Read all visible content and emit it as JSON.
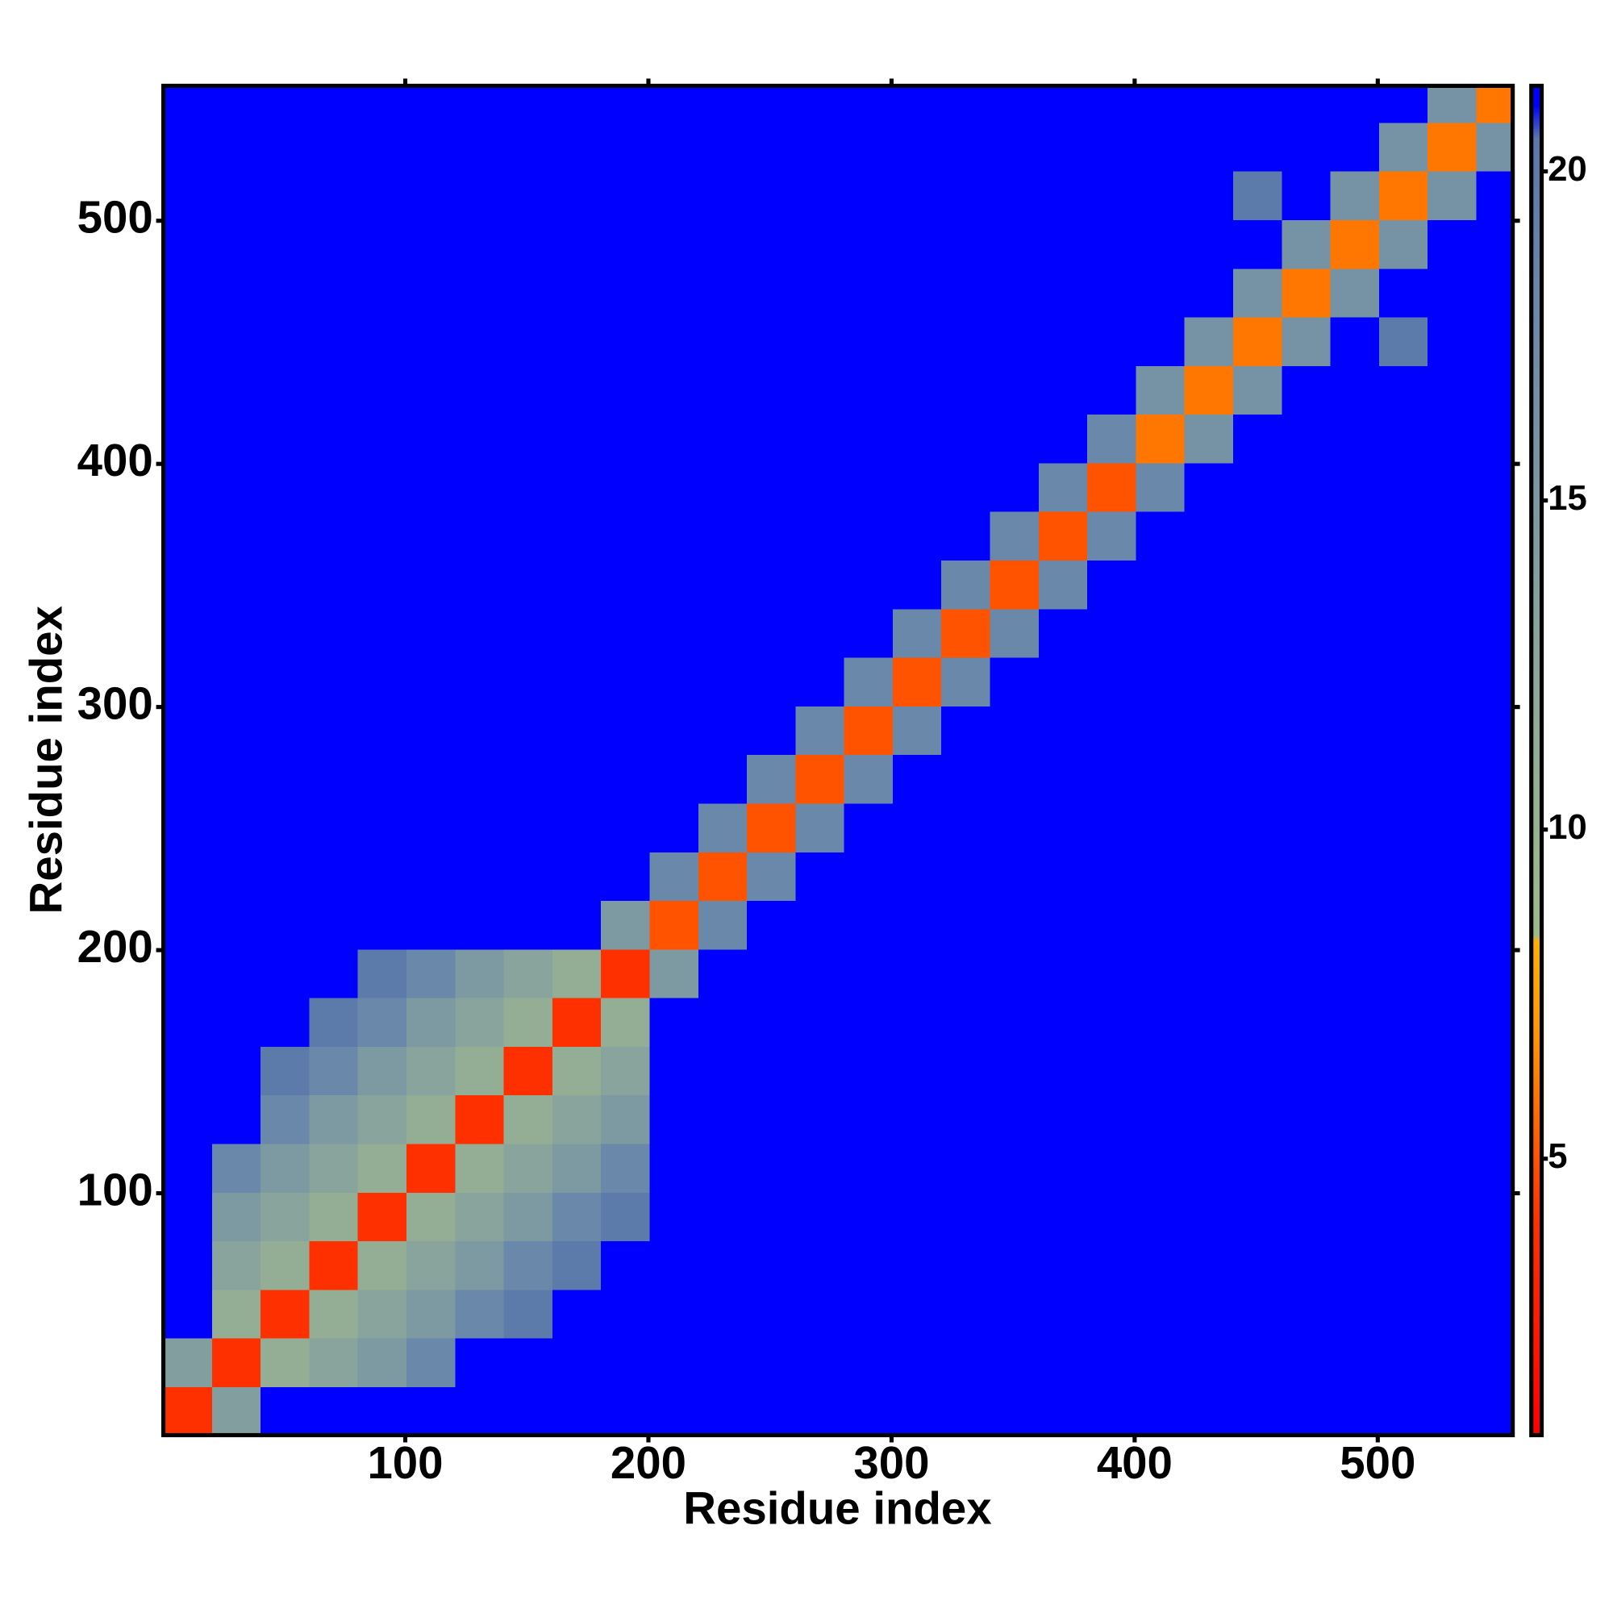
{
  "chart_data": {
    "type": "heatmap",
    "x_label": "Residue index",
    "y_label": "Residue index",
    "xlim": [
      0.5,
      555.5
    ],
    "ylim": [
      0.5,
      555.5
    ],
    "xticks": [
      100,
      200,
      300,
      400,
      500
    ],
    "yticks": [
      100,
      200,
      300,
      400,
      500
    ],
    "zlim": [
      0.8,
      21.3
    ],
    "zticks": [
      5,
      10,
      15,
      20
    ],
    "colorscale": [
      [
        0.8,
        "#ff0000"
      ],
      [
        4,
        "#ff3000"
      ],
      [
        7,
        "#ff9a00"
      ],
      [
        8.3,
        "#ffb000"
      ],
      [
        8.4,
        "#9cbb88"
      ],
      [
        12,
        "#8fa99a"
      ],
      [
        18,
        "#6a88aa"
      ],
      [
        20.5,
        "#5a78aa"
      ],
      [
        21,
        "#0000ff"
      ],
      [
        21.3,
        "#0000ff"
      ]
    ],
    "xbins": [
      0.5,
      20.5,
      40.5,
      60.5,
      80.5,
      100.5,
      120.5,
      140.5,
      160.5,
      180.5,
      200.5,
      220.5,
      240.5,
      260.5,
      280.5,
      300.5,
      320.5,
      340.5,
      360.5,
      380.5,
      400.5,
      420.5,
      440.5,
      460.5,
      480.5,
      500.5,
      520.5,
      540.5,
      555.5
    ],
    "ybins": [
      0.5,
      20.5,
      40.5,
      60.5,
      80.5,
      100.5,
      120.5,
      140.5,
      160.5,
      180.5,
      200.5,
      220.5,
      240.5,
      260.5,
      280.5,
      300.5,
      320.5,
      340.5,
      360.5,
      380.5,
      400.5,
      420.5,
      440.5,
      460.5,
      480.5,
      500.5,
      520.5,
      540.5,
      555.5
    ],
    "z": [
      [
        4,
        14,
        21,
        21,
        21,
        21,
        21,
        21,
        21,
        21,
        21,
        21,
        21,
        21,
        21,
        21,
        21,
        21,
        21,
        21,
        21,
        21,
        21,
        21,
        21,
        21,
        21,
        21
      ],
      [
        14,
        4,
        11,
        13,
        15,
        18,
        21,
        21,
        21,
        21,
        21,
        21,
        21,
        21,
        21,
        21,
        21,
        21,
        21,
        21,
        21,
        21,
        21,
        21,
        21,
        21,
        21,
        21
      ],
      [
        21,
        11,
        4,
        11,
        13,
        15,
        18,
        20,
        21,
        21,
        21,
        21,
        21,
        21,
        21,
        21,
        21,
        21,
        21,
        21,
        21,
        21,
        21,
        21,
        21,
        21,
        21,
        21
      ],
      [
        21,
        13,
        11,
        4,
        11,
        13,
        15,
        18,
        20,
        21,
        21,
        21,
        21,
        21,
        21,
        21,
        21,
        21,
        21,
        21,
        21,
        21,
        21,
        21,
        21,
        21,
        21,
        21
      ],
      [
        21,
        15,
        13,
        11,
        4,
        11,
        13,
        15,
        18,
        20,
        21,
        21,
        21,
        21,
        21,
        21,
        21,
        21,
        21,
        21,
        21,
        21,
        21,
        21,
        21,
        21,
        21,
        21
      ],
      [
        21,
        18,
        15,
        13,
        11,
        4,
        11,
        13,
        15,
        18,
        21,
        21,
        21,
        21,
        21,
        21,
        21,
        21,
        21,
        21,
        21,
        21,
        21,
        21,
        21,
        21,
        21,
        21
      ],
      [
        21,
        21,
        18,
        15,
        13,
        11,
        4,
        11,
        13,
        15,
        21,
        21,
        21,
        21,
        21,
        21,
        21,
        21,
        21,
        21,
        21,
        21,
        21,
        21,
        21,
        21,
        21,
        21
      ],
      [
        21,
        21,
        20,
        18,
        15,
        13,
        11,
        4,
        11,
        13,
        21,
        21,
        21,
        21,
        21,
        21,
        21,
        21,
        21,
        21,
        21,
        21,
        21,
        21,
        21,
        21,
        21,
        21
      ],
      [
        21,
        21,
        21,
        20,
        18,
        15,
        13,
        11,
        4,
        11,
        21,
        21,
        21,
        21,
        21,
        21,
        21,
        21,
        21,
        21,
        21,
        21,
        21,
        21,
        21,
        21,
        21,
        21
      ],
      [
        21,
        21,
        21,
        21,
        20,
        18,
        15,
        13,
        11,
        4,
        15,
        21,
        21,
        21,
        21,
        21,
        21,
        21,
        21,
        21,
        21,
        21,
        21,
        21,
        21,
        21,
        21,
        21
      ],
      [
        21,
        21,
        21,
        21,
        21,
        21,
        21,
        21,
        21,
        15,
        5,
        18,
        21,
        21,
        21,
        21,
        21,
        21,
        21,
        21,
        21,
        21,
        21,
        21,
        21,
        21,
        21,
        21
      ],
      [
        21,
        21,
        21,
        21,
        21,
        21,
        21,
        21,
        21,
        21,
        18,
        5,
        18,
        21,
        21,
        21,
        21,
        21,
        21,
        21,
        21,
        21,
        21,
        21,
        21,
        21,
        21,
        21
      ],
      [
        21,
        21,
        21,
        21,
        21,
        21,
        21,
        21,
        21,
        21,
        21,
        18,
        5,
        18,
        21,
        21,
        21,
        21,
        21,
        21,
        21,
        21,
        21,
        21,
        21,
        21,
        21,
        21
      ],
      [
        21,
        21,
        21,
        21,
        21,
        21,
        21,
        21,
        21,
        21,
        21,
        21,
        18,
        5,
        18,
        21,
        21,
        21,
        21,
        21,
        21,
        21,
        21,
        21,
        21,
        21,
        21,
        21
      ],
      [
        21,
        21,
        21,
        21,
        21,
        21,
        21,
        21,
        21,
        21,
        21,
        21,
        21,
        18,
        5,
        18,
        21,
        21,
        21,
        21,
        21,
        21,
        21,
        21,
        21,
        21,
        21,
        21
      ],
      [
        21,
        21,
        21,
        21,
        21,
        21,
        21,
        21,
        21,
        21,
        21,
        21,
        21,
        21,
        18,
        5,
        18,
        21,
        21,
        21,
        21,
        21,
        21,
        21,
        21,
        21,
        21,
        21
      ],
      [
        21,
        21,
        21,
        21,
        21,
        21,
        21,
        21,
        21,
        21,
        21,
        21,
        21,
        21,
        21,
        18,
        5,
        18,
        21,
        21,
        21,
        21,
        21,
        21,
        21,
        21,
        21,
        21
      ],
      [
        21,
        21,
        21,
        21,
        21,
        21,
        21,
        21,
        21,
        21,
        21,
        21,
        21,
        21,
        21,
        21,
        18,
        5,
        18,
        21,
        21,
        21,
        21,
        21,
        21,
        21,
        21,
        21
      ],
      [
        21,
        21,
        21,
        21,
        21,
        21,
        21,
        21,
        21,
        21,
        21,
        21,
        21,
        21,
        21,
        21,
        21,
        18,
        5,
        18,
        21,
        21,
        21,
        21,
        21,
        21,
        21,
        21
      ],
      [
        21,
        21,
        21,
        21,
        21,
        21,
        21,
        21,
        21,
        21,
        21,
        21,
        21,
        21,
        21,
        21,
        21,
        21,
        18,
        5,
        18,
        21,
        21,
        21,
        21,
        21,
        21,
        21
      ],
      [
        21,
        21,
        21,
        21,
        21,
        21,
        21,
        21,
        21,
        21,
        21,
        21,
        21,
        21,
        21,
        21,
        21,
        21,
        21,
        18,
        6,
        16,
        21,
        21,
        21,
        21,
        21,
        21
      ],
      [
        21,
        21,
        21,
        21,
        21,
        21,
        21,
        21,
        21,
        21,
        21,
        21,
        21,
        21,
        21,
        21,
        21,
        21,
        21,
        21,
        16,
        6,
        16,
        21,
        21,
        21,
        21,
        21
      ],
      [
        21,
        21,
        21,
        21,
        21,
        21,
        21,
        21,
        21,
        21,
        21,
        21,
        21,
        21,
        21,
        21,
        21,
        21,
        21,
        21,
        21,
        16,
        6,
        16,
        21,
        20,
        21,
        21
      ],
      [
        21,
        21,
        21,
        21,
        21,
        21,
        21,
        21,
        21,
        21,
        21,
        21,
        21,
        21,
        21,
        21,
        21,
        21,
        21,
        21,
        21,
        21,
        16,
        6,
        16,
        21,
        21,
        21
      ],
      [
        21,
        21,
        21,
        21,
        21,
        21,
        21,
        21,
        21,
        21,
        21,
        21,
        21,
        21,
        21,
        21,
        21,
        21,
        21,
        21,
        21,
        21,
        21,
        16,
        6,
        16,
        21,
        21
      ],
      [
        21,
        21,
        21,
        21,
        21,
        21,
        21,
        21,
        21,
        21,
        21,
        21,
        21,
        21,
        21,
        21,
        21,
        21,
        21,
        21,
        21,
        21,
        20,
        21,
        16,
        6,
        16,
        21
      ],
      [
        21,
        21,
        21,
        21,
        21,
        21,
        21,
        21,
        21,
        21,
        21,
        21,
        21,
        21,
        21,
        21,
        21,
        21,
        21,
        21,
        21,
        21,
        21,
        21,
        21,
        16,
        6,
        16
      ],
      [
        21,
        21,
        21,
        21,
        21,
        21,
        21,
        21,
        21,
        21,
        21,
        21,
        21,
        21,
        21,
        21,
        21,
        21,
        21,
        21,
        21,
        21,
        21,
        21,
        21,
        21,
        16,
        6
      ]
    ]
  }
}
